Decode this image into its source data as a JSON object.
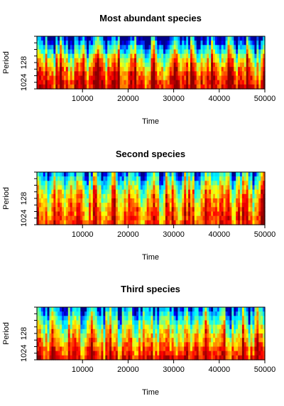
{
  "chart_data": [
    {
      "type": "heatmap",
      "title": "Most abundant species",
      "xlabel": "Time",
      "ylabel": "Period",
      "xlim": [
        0,
        50000
      ],
      "x_ticks": [
        10000,
        20000,
        30000,
        40000,
        50000
      ],
      "y_ticks": [
        128,
        1024
      ],
      "y_scale": "log2",
      "ylim": [
        2048,
        8
      ],
      "colormap": [
        "#00008b",
        "#0000ff",
        "#00bfff",
        "#00ffff",
        "#7fff7f",
        "#ffff00",
        "#ff8000",
        "#ff0000",
        "#8b0000"
      ],
      "power_profile": [
        0.1,
        0.35,
        0.6,
        0.75,
        0.85,
        0.9
      ]
    },
    {
      "type": "heatmap",
      "title": "Second species",
      "xlabel": "Time",
      "ylabel": "Period",
      "xlim": [
        0,
        50000
      ],
      "x_ticks": [
        10000,
        20000,
        30000,
        40000,
        50000
      ],
      "y_ticks": [
        128,
        1024
      ],
      "y_scale": "log2",
      "ylim": [
        2048,
        8
      ],
      "colormap": [
        "#00008b",
        "#0000ff",
        "#00bfff",
        "#00ffff",
        "#7fff7f",
        "#ffff00",
        "#ff8000",
        "#ff0000",
        "#8b0000"
      ],
      "power_profile": [
        0.3,
        0.5,
        0.65,
        0.72,
        0.78,
        0.82
      ]
    },
    {
      "type": "heatmap",
      "title": "Third species",
      "xlabel": "Time",
      "ylabel": "Period",
      "xlim": [
        0,
        50000
      ],
      "x_ticks": [
        10000,
        20000,
        30000,
        40000,
        50000
      ],
      "y_ticks": [
        128,
        1024
      ],
      "y_scale": "log2",
      "ylim": [
        2048,
        8
      ],
      "colormap": [
        "#00008b",
        "#0000ff",
        "#00bfff",
        "#00ffff",
        "#7fff7f",
        "#ffff00",
        "#ff8000",
        "#ff0000",
        "#8b0000"
      ],
      "power_profile": [
        0.25,
        0.42,
        0.58,
        0.68,
        0.8,
        0.88
      ]
    }
  ]
}
